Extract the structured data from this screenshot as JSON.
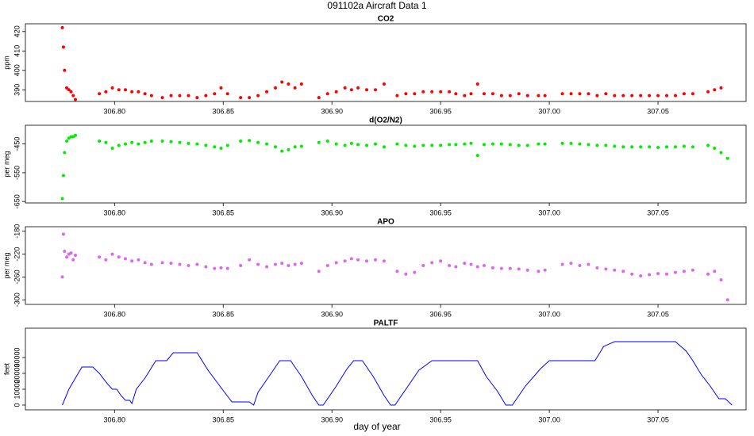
{
  "title": "091102a   Aircraft Data 1",
  "xlabel": "day of year",
  "chart_data": [
    {
      "type": "scatter",
      "title": "CO2",
      "ylabel": "ppm",
      "color": "#ff0000",
      "x": [
        306.776,
        306.7765,
        306.777,
        306.778,
        306.779,
        306.78,
        306.781,
        306.782,
        306.793,
        306.796,
        306.799,
        306.802,
        306.805,
        306.808,
        306.811,
        306.814,
        306.817,
        306.822,
        306.826,
        306.83,
        306.834,
        306.838,
        306.842,
        306.846,
        306.849,
        306.852,
        306.858,
        306.862,
        306.866,
        306.87,
        306.874,
        306.877,
        306.88,
        306.883,
        306.886,
        306.894,
        306.898,
        306.902,
        306.906,
        306.909,
        306.912,
        306.916,
        306.92,
        306.924,
        306.93,
        306.934,
        306.938,
        306.942,
        306.946,
        306.95,
        306.954,
        306.957,
        306.961,
        306.964,
        306.967,
        306.97,
        306.974,
        306.978,
        306.982,
        306.986,
        306.99,
        306.995,
        306.998,
        307.006,
        307.01,
        307.014,
        307.018,
        307.022,
        307.026,
        307.03,
        307.034,
        307.038,
        307.042,
        307.046,
        307.05,
        307.054,
        307.058,
        307.062,
        307.066,
        307.073,
        307.076,
        307.079
      ],
      "values": [
        422,
        412,
        400,
        391,
        390,
        389,
        387,
        385,
        388,
        389,
        391,
        390,
        390,
        389,
        389,
        388,
        387,
        386,
        387,
        387,
        387,
        386,
        387,
        388,
        391,
        388,
        386,
        386,
        387,
        389,
        391,
        394,
        393,
        391,
        393,
        386,
        388,
        389,
        391,
        390,
        391,
        390,
        390,
        393,
        387,
        388,
        388,
        389,
        389,
        389,
        389,
        388,
        387,
        388,
        393,
        388,
        388,
        387,
        387,
        388,
        387,
        387,
        387,
        388,
        388,
        388,
        388,
        387,
        388,
        387,
        387,
        387,
        387,
        387,
        387,
        387,
        387,
        388,
        388,
        389,
        390,
        391
      ],
      "xlim": [
        306.759,
        307.0905
      ],
      "xticks": [
        {
          "value": 306.8,
          "label": "306.80"
        },
        306.85,
        {
          "value": 306.9,
          "label": "306.90"
        },
        306.95,
        {
          "value": 307,
          "label": "307.00"
        },
        307.05
      ],
      "ylim": [
        384,
        424
      ],
      "yticks": [
        390,
        400,
        410,
        420
      ]
    },
    {
      "type": "scatter",
      "title": "d(O2/N2)",
      "ylabel": "per meg",
      "color": "#00ee00",
      "x": [
        306.776,
        306.7765,
        306.777,
        306.778,
        306.779,
        306.78,
        306.781,
        306.782,
        306.793,
        306.796,
        306.799,
        306.802,
        306.805,
        306.808,
        306.811,
        306.814,
        306.817,
        306.822,
        306.826,
        306.83,
        306.834,
        306.838,
        306.842,
        306.846,
        306.849,
        306.852,
        306.858,
        306.862,
        306.866,
        306.87,
        306.874,
        306.877,
        306.88,
        306.883,
        306.886,
        306.894,
        306.898,
        306.902,
        306.906,
        306.909,
        306.912,
        306.916,
        306.92,
        306.924,
        306.93,
        306.934,
        306.938,
        306.942,
        306.946,
        306.95,
        306.954,
        306.957,
        306.961,
        306.964,
        306.967,
        306.97,
        306.974,
        306.978,
        306.982,
        306.986,
        306.99,
        306.995,
        306.998,
        307.006,
        307.01,
        307.014,
        307.018,
        307.022,
        307.026,
        307.03,
        307.034,
        307.038,
        307.042,
        307.046,
        307.05,
        307.054,
        307.058,
        307.062,
        307.066,
        307.073,
        307.076,
        307.079,
        307.082
      ],
      "values": [
        -640,
        -560,
        -480,
        -440,
        -430,
        -425,
        -425,
        -420,
        -440,
        -445,
        -465,
        -455,
        -450,
        -445,
        -450,
        -445,
        -440,
        -440,
        -442,
        -445,
        -448,
        -450,
        -455,
        -460,
        -465,
        -455,
        -440,
        -438,
        -445,
        -450,
        -460,
        -475,
        -470,
        -460,
        -458,
        -445,
        -440,
        -450,
        -455,
        -448,
        -452,
        -455,
        -450,
        -460,
        -450,
        -455,
        -458,
        -455,
        -455,
        -455,
        -452,
        -452,
        -450,
        -448,
        -490,
        -452,
        -450,
        -450,
        -452,
        -455,
        -455,
        -450,
        -450,
        -448,
        -448,
        -450,
        -452,
        -455,
        -455,
        -458,
        -460,
        -460,
        -460,
        -460,
        -462,
        -460,
        -460,
        -458,
        -460,
        -455,
        -465,
        -480,
        -500
      ],
      "xlim": [
        306.759,
        307.0905
      ],
      "xticks": [
        {
          "value": 306.8,
          "label": "306.80"
        },
        306.85,
        {
          "value": 306.9,
          "label": "306.90"
        },
        306.95,
        {
          "value": 307,
          "label": "307.00"
        },
        307.05
      ],
      "ylim": [
        -655,
        -385
      ],
      "yticks": [
        -450,
        -550,
        -650
      ]
    },
    {
      "type": "scatter",
      "title": "APO",
      "ylabel": "per meg",
      "color": "#dd66ee",
      "x": [
        306.776,
        306.7765,
        306.777,
        306.778,
        306.779,
        306.78,
        306.781,
        306.782,
        306.793,
        306.796,
        306.799,
        306.802,
        306.805,
        306.808,
        306.811,
        306.814,
        306.817,
        306.822,
        306.826,
        306.83,
        306.834,
        306.838,
        306.842,
        306.846,
        306.849,
        306.852,
        306.858,
        306.862,
        306.866,
        306.87,
        306.874,
        306.877,
        306.88,
        306.883,
        306.886,
        306.894,
        306.898,
        306.902,
        306.906,
        306.909,
        306.912,
        306.916,
        306.92,
        306.924,
        306.93,
        306.934,
        306.938,
        306.942,
        306.946,
        306.95,
        306.954,
        306.957,
        306.961,
        306.964,
        306.967,
        306.97,
        306.974,
        306.978,
        306.982,
        306.986,
        306.99,
        306.995,
        306.998,
        307.006,
        307.01,
        307.014,
        307.018,
        307.022,
        307.026,
        307.03,
        307.034,
        307.038,
        307.042,
        307.046,
        307.05,
        307.054,
        307.058,
        307.062,
        307.066,
        307.073,
        307.076,
        307.079,
        307.082
      ],
      "values": [
        -260,
        -185,
        -215,
        -225,
        -220,
        -218,
        -230,
        -222,
        -225,
        -230,
        -220,
        -225,
        -228,
        -232,
        -230,
        -235,
        -238,
        -235,
        -236,
        -238,
        -240,
        -238,
        -242,
        -245,
        -244,
        -245,
        -240,
        -230,
        -238,
        -242,
        -238,
        -236,
        -240,
        -238,
        -236,
        -250,
        -240,
        -235,
        -232,
        -228,
        -230,
        -232,
        -230,
        -232,
        -250,
        -255,
        -252,
        -240,
        -235,
        -232,
        -240,
        -242,
        -236,
        -238,
        -242,
        -240,
        -244,
        -245,
        -245,
        -246,
        -248,
        -250,
        -248,
        -238,
        -236,
        -240,
        -238,
        -244,
        -246,
        -248,
        -250,
        -255,
        -258,
        -256,
        -254,
        -255,
        -252,
        -250,
        -248,
        -255,
        -250,
        -265,
        -300
      ],
      "xlim": [
        306.759,
        307.0905
      ],
      "xticks": [
        {
          "value": 306.8,
          "label": "306.80"
        },
        306.85,
        {
          "value": 306.9,
          "label": "306.90"
        },
        306.95,
        {
          "value": 307,
          "label": "307.00"
        },
        307.05
      ],
      "ylim": [
        -308,
        -172
      ],
      "yticks": [
        -180,
        -220,
        -260,
        -300
      ]
    },
    {
      "type": "line",
      "title": "PALTF",
      "ylabel": "feet",
      "color": "#0000ff",
      "x": [
        306.776,
        306.779,
        306.785,
        306.79,
        306.793,
        306.797,
        306.799,
        306.801,
        306.803,
        306.805,
        306.807,
        306.808,
        306.81,
        306.814,
        306.819,
        306.824,
        306.827,
        306.838,
        306.843,
        306.849,
        306.854,
        306.862,
        306.864,
        306.866,
        306.871,
        306.876,
        306.881,
        306.886,
        306.891,
        306.894,
        306.896,
        306.902,
        306.907,
        306.91,
        306.914,
        306.919,
        306.924,
        306.927,
        306.929,
        306.935,
        306.94,
        306.946,
        306.967,
        306.971,
        306.976,
        306.98,
        306.983,
        306.989,
        306.996,
        307,
        307.021,
        307.025,
        307.03,
        307.058,
        307.063,
        307.066,
        307.07,
        307.074,
        307.078,
        307.081,
        307.084
      ],
      "values": [
        0,
        10000,
        24000,
        24000,
        20000,
        13000,
        10000,
        10000,
        6000,
        3000,
        3000,
        1000,
        10000,
        17000,
        28000,
        28000,
        33000,
        33000,
        22000,
        11000,
        2000,
        2000,
        0,
        8000,
        18000,
        28000,
        28000,
        18000,
        6000,
        0,
        0,
        12000,
        23000,
        28000,
        28000,
        18000,
        6000,
        0,
        0,
        12000,
        22000,
        28000,
        28000,
        18000,
        9000,
        0,
        0,
        12000,
        23000,
        28000,
        28000,
        37000,
        40000,
        40000,
        34000,
        28000,
        19000,
        12000,
        4000,
        4000,
        0
      ],
      "xlim": [
        306.759,
        307.0905
      ],
      "xticks": [
        {
          "value": 306.8,
          "label": "306.80"
        },
        306.85,
        {
          "value": 306.9,
          "label": "306.90"
        },
        306.95,
        {
          "value": 307,
          "label": "307.00"
        },
        307.05
      ],
      "ylim": [
        -3000,
        48500
      ],
      "yticks": [
        0,
        10000,
        20000,
        30000
      ]
    }
  ]
}
